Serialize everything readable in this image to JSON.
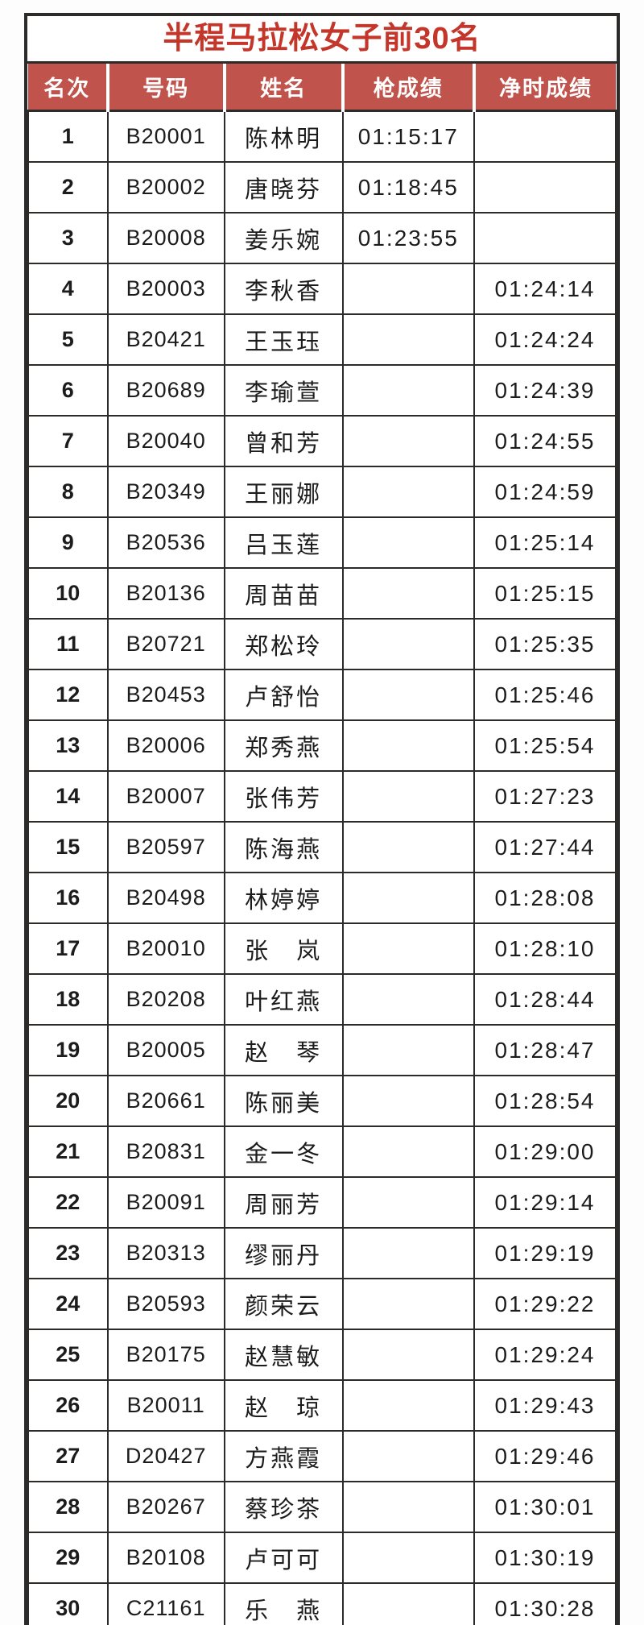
{
  "title": "半程马拉松女子前30名",
  "columns": {
    "rank": "名次",
    "bib": "号码",
    "name": "姓名",
    "gun_time": "枪成绩",
    "net_time": "净时成绩"
  },
  "rows": [
    {
      "rank": "1",
      "bib": "B20001",
      "name": "陈林明",
      "gun_time": "01:15:17",
      "net_time": ""
    },
    {
      "rank": "2",
      "bib": "B20002",
      "name": "唐晓芬",
      "gun_time": "01:18:45",
      "net_time": ""
    },
    {
      "rank": "3",
      "bib": "B20008",
      "name": "姜乐婉",
      "gun_time": "01:23:55",
      "net_time": ""
    },
    {
      "rank": "4",
      "bib": "B20003",
      "name": "李秋香",
      "gun_time": "",
      "net_time": "01:24:14"
    },
    {
      "rank": "5",
      "bib": "B20421",
      "name": "王玉珏",
      "gun_time": "",
      "net_time": "01:24:24"
    },
    {
      "rank": "6",
      "bib": "B20689",
      "name": "李瑜萱",
      "gun_time": "",
      "net_time": "01:24:39"
    },
    {
      "rank": "7",
      "bib": "B20040",
      "name": "曾和芳",
      "gun_time": "",
      "net_time": "01:24:55"
    },
    {
      "rank": "8",
      "bib": "B20349",
      "name": "王丽娜",
      "gun_time": "",
      "net_time": "01:24:59"
    },
    {
      "rank": "9",
      "bib": "B20536",
      "name": "吕玉莲",
      "gun_time": "",
      "net_time": "01:25:14"
    },
    {
      "rank": "10",
      "bib": "B20136",
      "name": "周苗苗",
      "gun_time": "",
      "net_time": "01:25:15"
    },
    {
      "rank": "11",
      "bib": "B20721",
      "name": "郑松玲",
      "gun_time": "",
      "net_time": "01:25:35"
    },
    {
      "rank": "12",
      "bib": "B20453",
      "name": "卢舒怡",
      "gun_time": "",
      "net_time": "01:25:46"
    },
    {
      "rank": "13",
      "bib": "B20006",
      "name": "郑秀燕",
      "gun_time": "",
      "net_time": "01:25:54"
    },
    {
      "rank": "14",
      "bib": "B20007",
      "name": "张伟芳",
      "gun_time": "",
      "net_time": "01:27:23"
    },
    {
      "rank": "15",
      "bib": "B20597",
      "name": "陈海燕",
      "gun_time": "",
      "net_time": "01:27:44"
    },
    {
      "rank": "16",
      "bib": "B20498",
      "name": "林婷婷",
      "gun_time": "",
      "net_time": "01:28:08"
    },
    {
      "rank": "17",
      "bib": "B20010",
      "name": "张　岚",
      "gun_time": "",
      "net_time": "01:28:10"
    },
    {
      "rank": "18",
      "bib": "B20208",
      "name": "叶红燕",
      "gun_time": "",
      "net_time": "01:28:44"
    },
    {
      "rank": "19",
      "bib": "B20005",
      "name": "赵　琴",
      "gun_time": "",
      "net_time": "01:28:47"
    },
    {
      "rank": "20",
      "bib": "B20661",
      "name": "陈丽美",
      "gun_time": "",
      "net_time": "01:28:54"
    },
    {
      "rank": "21",
      "bib": "B20831",
      "name": "金一冬",
      "gun_time": "",
      "net_time": "01:29:00"
    },
    {
      "rank": "22",
      "bib": "B20091",
      "name": "周丽芳",
      "gun_time": "",
      "net_time": "01:29:14"
    },
    {
      "rank": "23",
      "bib": "B20313",
      "name": "缪丽丹",
      "gun_time": "",
      "net_time": "01:29:19"
    },
    {
      "rank": "24",
      "bib": "B20593",
      "name": "颜荣云",
      "gun_time": "",
      "net_time": "01:29:22"
    },
    {
      "rank": "25",
      "bib": "B20175",
      "name": "赵慧敏",
      "gun_time": "",
      "net_time": "01:29:24"
    },
    {
      "rank": "26",
      "bib": "B20011",
      "name": "赵　琼",
      "gun_time": "",
      "net_time": "01:29:43"
    },
    {
      "rank": "27",
      "bib": "D20427",
      "name": "方燕霞",
      "gun_time": "",
      "net_time": "01:29:46"
    },
    {
      "rank": "28",
      "bib": "B20267",
      "name": "蔡珍茶",
      "gun_time": "",
      "net_time": "01:30:01"
    },
    {
      "rank": "29",
      "bib": "B20108",
      "name": "卢可可",
      "gun_time": "",
      "net_time": "01:30:19"
    },
    {
      "rank": "30",
      "bib": "C21161",
      "name": "乐　燕",
      "gun_time": "",
      "net_time": "01:30:28"
    }
  ],
  "colors": {
    "title_text": "#c4352a",
    "header_bg": "#c0534c",
    "header_text": "#ffffff",
    "grid_border": "#2d2a2a",
    "body_text": "#1c1c1c",
    "page_bg": "#fdfdfd"
  }
}
